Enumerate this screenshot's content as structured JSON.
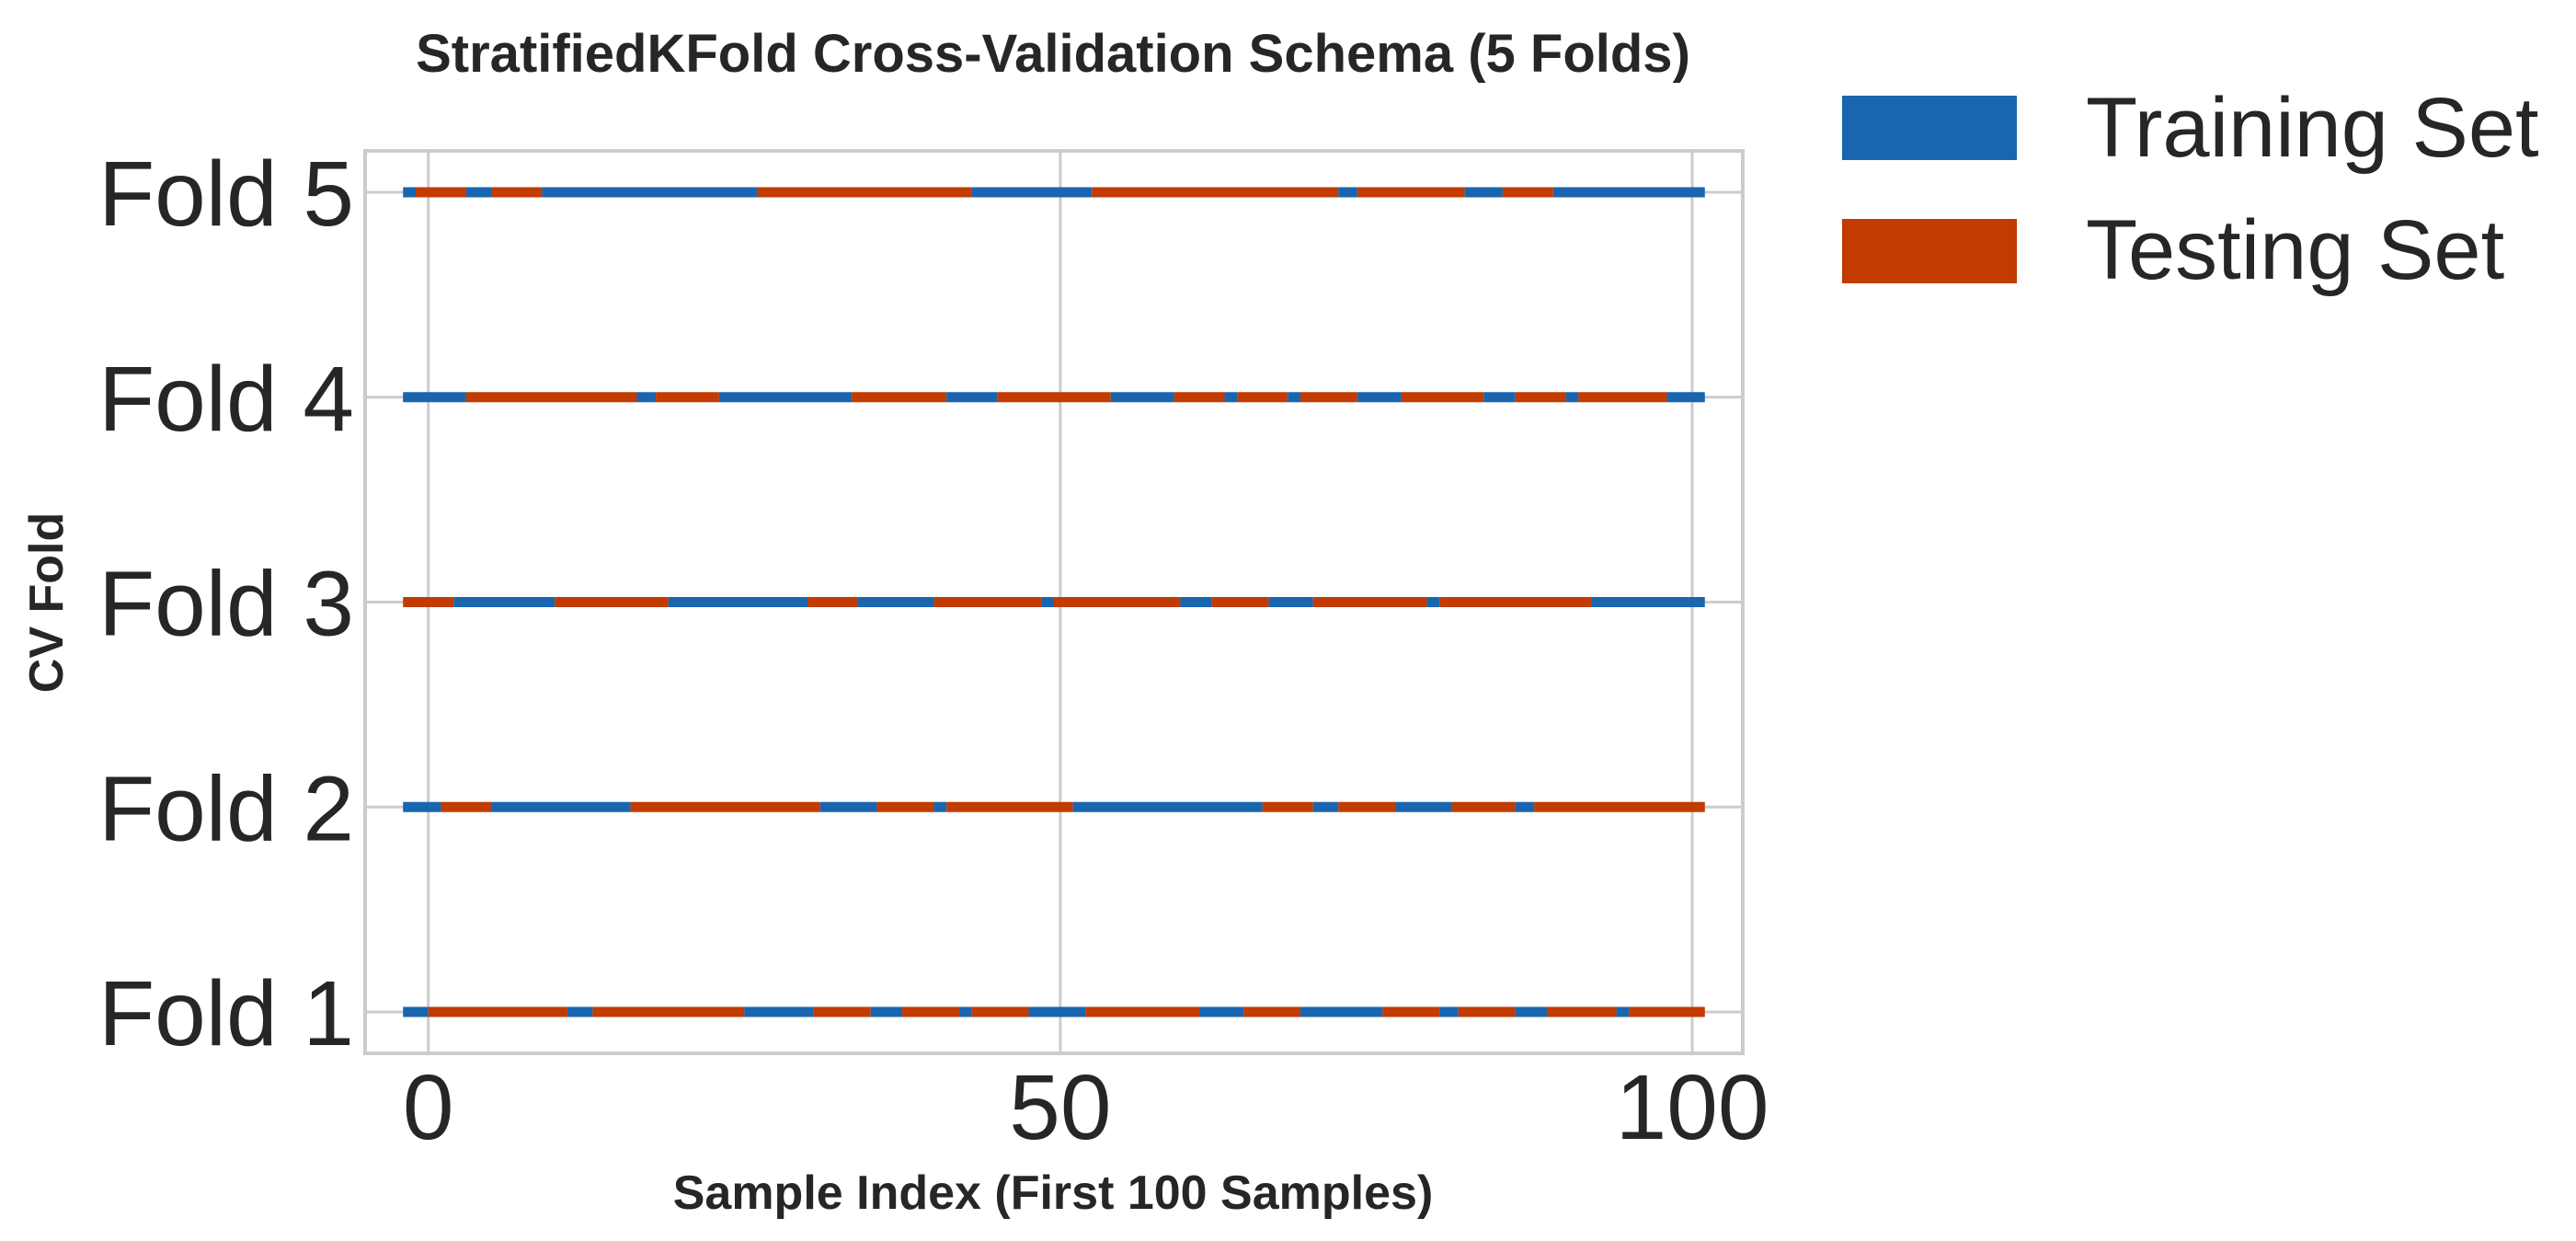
{
  "chart_data": {
    "type": "bar",
    "title": "StratifiedKFold Cross-Validation Schema (5 Folds)",
    "xlabel": "Sample Index (First 100 Samples)",
    "ylabel": "CV Fold",
    "xlim": [
      -5,
      104
    ],
    "x_ticks": [
      0,
      50,
      100
    ],
    "folds": [
      "Fold 1",
      "Fold 2",
      "Fold 3",
      "Fold 4",
      "Fold 5"
    ],
    "grid": true,
    "legend_position": "outside-top-right",
    "colors": {
      "train": "#1965b0",
      "test": "#c23b00"
    },
    "series": [
      {
        "name": "Training Set",
        "key": "train"
      },
      {
        "name": "Testing Set",
        "key": "test"
      }
    ],
    "segments": {
      "Fold 1": [
        [
          "train",
          -2,
          0
        ],
        [
          "test",
          0,
          11
        ],
        [
          "train",
          11,
          13
        ],
        [
          "test",
          13,
          25
        ],
        [
          "train",
          25,
          30.5
        ],
        [
          "test",
          30.5,
          35
        ],
        [
          "train",
          35,
          37.5
        ],
        [
          "test",
          37.5,
          42
        ],
        [
          "train",
          42,
          43
        ],
        [
          "test",
          43,
          47.5
        ],
        [
          "train",
          47.5,
          52
        ],
        [
          "test",
          52,
          61
        ],
        [
          "train",
          61,
          64.5
        ],
        [
          "test",
          64.5,
          69
        ],
        [
          "train",
          69,
          75.5
        ],
        [
          "test",
          75.5,
          80
        ],
        [
          "train",
          80,
          81.5
        ],
        [
          "test",
          81.5,
          86
        ],
        [
          "train",
          86,
          88.5
        ],
        [
          "test",
          88.5,
          94
        ],
        [
          "train",
          94,
          95
        ],
        [
          "test",
          95,
          101
        ]
      ],
      "Fold 2": [
        [
          "train",
          -2,
          1
        ],
        [
          "test",
          1,
          5
        ],
        [
          "train",
          5,
          16
        ],
        [
          "test",
          16,
          31
        ],
        [
          "train",
          31,
          35.5
        ],
        [
          "test",
          35.5,
          40
        ],
        [
          "train",
          40,
          41
        ],
        [
          "test",
          41,
          51
        ],
        [
          "train",
          51,
          66
        ],
        [
          "test",
          66,
          70
        ],
        [
          "train",
          70,
          72
        ],
        [
          "test",
          72,
          76.5
        ],
        [
          "train",
          76.5,
          81
        ],
        [
          "test",
          81,
          86
        ],
        [
          "train",
          86,
          87.5
        ],
        [
          "test",
          87.5,
          101
        ]
      ],
      "Fold 3": [
        [
          "test",
          -2,
          2
        ],
        [
          "train",
          2,
          10
        ],
        [
          "test",
          10,
          19
        ],
        [
          "train",
          19,
          30
        ],
        [
          "test",
          30,
          34
        ],
        [
          "train",
          34,
          40
        ],
        [
          "test",
          40,
          48.5
        ],
        [
          "train",
          48.5,
          49.5
        ],
        [
          "test",
          49.5,
          59.5
        ],
        [
          "train",
          59.5,
          62
        ],
        [
          "test",
          62,
          66.5
        ],
        [
          "train",
          66.5,
          70
        ],
        [
          "test",
          70,
          79
        ],
        [
          "train",
          79,
          80
        ],
        [
          "test",
          80,
          92
        ],
        [
          "train",
          92,
          101
        ]
      ],
      "Fold 4": [
        [
          "train",
          -2,
          3
        ],
        [
          "test",
          3,
          16.5
        ],
        [
          "train",
          16.5,
          18
        ],
        [
          "test",
          18,
          23
        ],
        [
          "train",
          23,
          33.5
        ],
        [
          "test",
          33.5,
          41
        ],
        [
          "train",
          41,
          45
        ],
        [
          "test",
          45,
          54
        ],
        [
          "train",
          54,
          59
        ],
        [
          "test",
          59,
          63
        ],
        [
          "train",
          63,
          64
        ],
        [
          "test",
          64,
          68
        ],
        [
          "train",
          68,
          69
        ],
        [
          "test",
          69,
          73.5
        ],
        [
          "train",
          73.5,
          77
        ],
        [
          "test",
          77,
          83.5
        ],
        [
          "train",
          83.5,
          86
        ],
        [
          "test",
          86,
          90
        ],
        [
          "train",
          90,
          91
        ],
        [
          "test",
          91,
          98
        ],
        [
          "train",
          98,
          101
        ]
      ],
      "Fold 5": [
        [
          "train",
          -2,
          -1
        ],
        [
          "test",
          -1,
          3
        ],
        [
          "train",
          3,
          5
        ],
        [
          "test",
          5,
          9
        ],
        [
          "train",
          9,
          26
        ],
        [
          "test",
          26,
          43
        ],
        [
          "train",
          43,
          52.5
        ],
        [
          "test",
          52.5,
          72
        ],
        [
          "train",
          72,
          73.5
        ],
        [
          "test",
          73.5,
          82
        ],
        [
          "train",
          82,
          85
        ],
        [
          "test",
          85,
          89
        ],
        [
          "train",
          89,
          101
        ]
      ]
    }
  }
}
